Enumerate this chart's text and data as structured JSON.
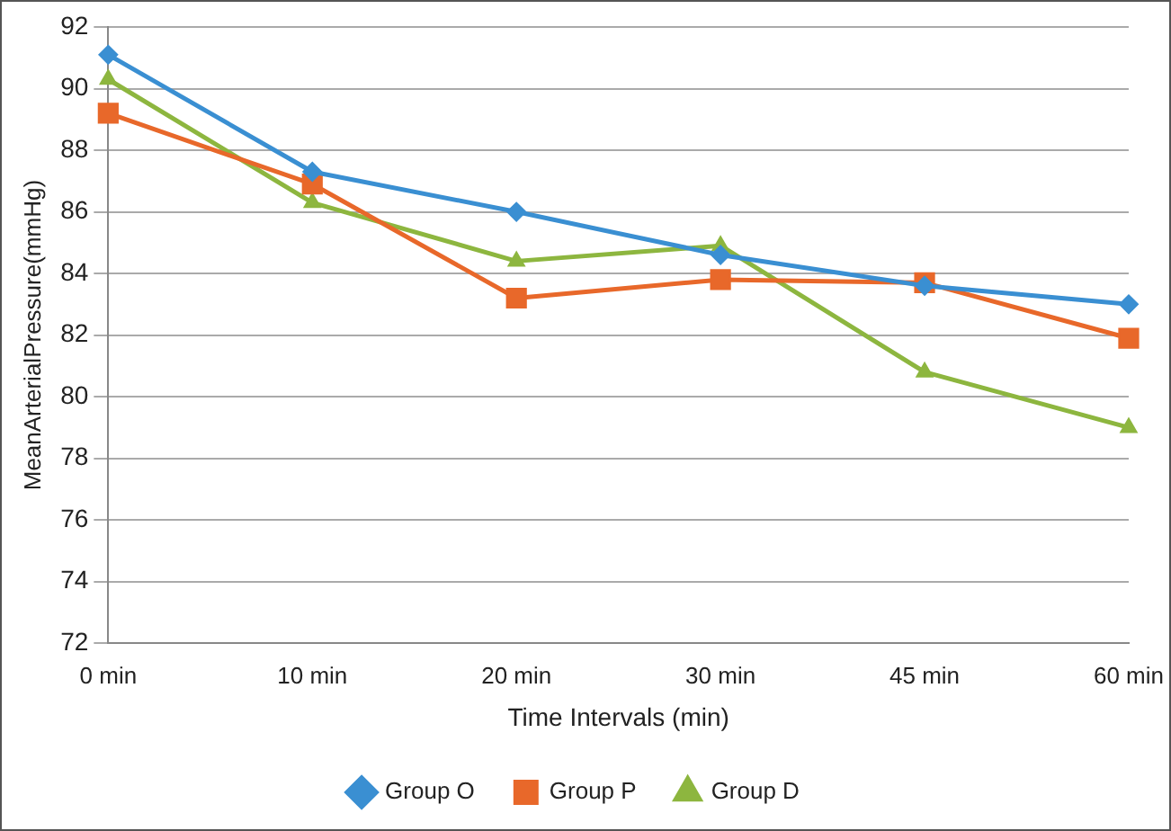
{
  "chart_data": {
    "type": "line",
    "xlabel": "Time Intervals (min)",
    "ylabel": "MeanArterialPressure(mmHg)",
    "categories": [
      "0 min",
      "10 min",
      "20 min",
      "30 min",
      "45 min",
      "60 min"
    ],
    "series": [
      {
        "name": "Group O",
        "color": "#3a8fd2",
        "marker": "diamond",
        "values": [
          91.1,
          87.3,
          86.0,
          84.6,
          83.6,
          83.0
        ]
      },
      {
        "name": "Group P",
        "color": "#e8682a",
        "marker": "square",
        "values": [
          89.2,
          86.9,
          83.2,
          83.8,
          83.7,
          81.9
        ]
      },
      {
        "name": "Group D",
        "color": "#8db63f",
        "marker": "triangle",
        "values": [
          90.3,
          86.3,
          84.4,
          84.9,
          80.8,
          79.0
        ]
      }
    ],
    "ylim": [
      72,
      92
    ],
    "yticks": [
      72,
      74,
      76,
      78,
      80,
      82,
      84,
      86,
      88,
      90,
      92
    ],
    "grid": "y",
    "legend": "bottom",
    "line_style": "solid"
  }
}
